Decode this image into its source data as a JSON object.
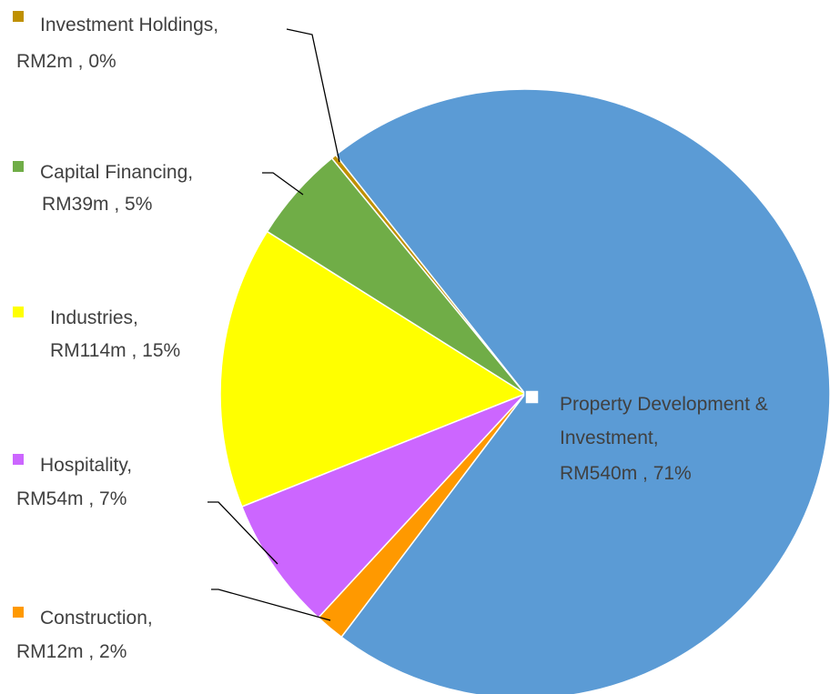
{
  "chart_data": {
    "type": "pie",
    "categories": [
      "Property Development & Investment,",
      "Construction,",
      "Hospitality,",
      "Industries,",
      "Capital Financing,",
      "Investment Holdings,"
    ],
    "values": [
      540,
      12,
      54,
      114,
      39,
      2
    ],
    "value_labels": [
      "RM540m , 71%",
      "RM12m , 2%",
      "RM54m , 7%",
      "RM114m , 15%",
      "RM39m , 5%",
      "RM2m , 0%"
    ],
    "colors": [
      "#5b9bd5",
      "#ff9900",
      "#cc66ff",
      "#ffff00",
      "#70ad47",
      "#bf9000"
    ]
  }
}
